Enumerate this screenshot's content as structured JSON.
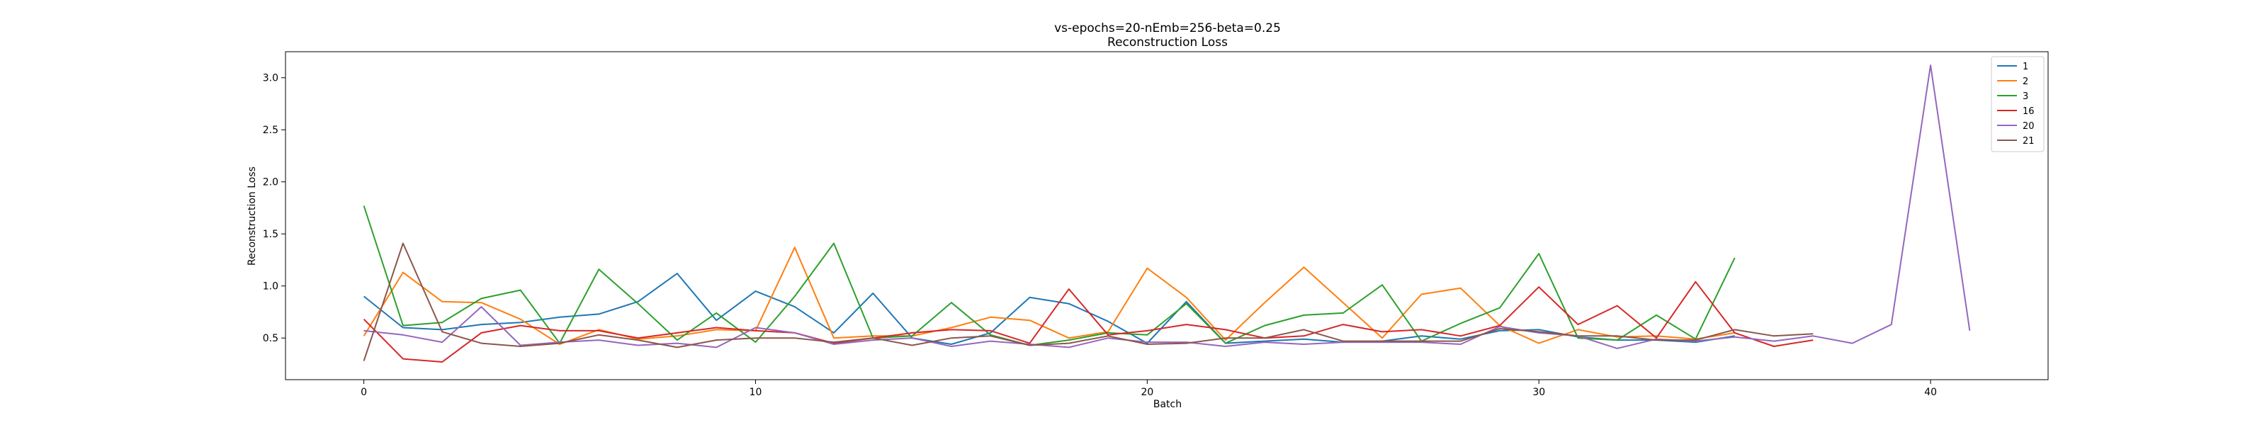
{
  "chart_data": {
    "type": "line",
    "title": "vs-epochs=20-nEmb=256-beta=0.25",
    "subtitle": "Reconstruction Loss",
    "xlabel": "Batch",
    "ylabel": "Reconstruction Loss",
    "xlim": [
      -2,
      43
    ],
    "ylim": [
      0.1,
      3.25
    ],
    "xticks": [
      0,
      10,
      20,
      30,
      40
    ],
    "yticks": [
      0.5,
      1.0,
      1.5,
      2.0,
      2.5,
      3.0
    ],
    "ytick_labels": [
      "0.5",
      "1.0",
      "1.5",
      "2.0",
      "2.5",
      "3.0"
    ],
    "grid": false,
    "legend": "top-right",
    "series": [
      {
        "name": "1",
        "color": "#1f77b4",
        "x": [
          0,
          1,
          2,
          3,
          4,
          5,
          6,
          7,
          8,
          9,
          10,
          11,
          12,
          13,
          14,
          15,
          16,
          17,
          18,
          19,
          20,
          21,
          22,
          23,
          24,
          25,
          26,
          27,
          28,
          29,
          30,
          31,
          32,
          33,
          34,
          35
        ],
        "values": [
          0.9,
          0.6,
          0.58,
          0.63,
          0.65,
          0.7,
          0.73,
          0.85,
          1.12,
          0.67,
          0.95,
          0.8,
          0.55,
          0.93,
          0.5,
          0.44,
          0.55,
          0.89,
          0.83,
          0.66,
          0.45,
          0.85,
          0.45,
          0.47,
          0.49,
          0.46,
          0.47,
          0.52,
          0.49,
          0.57,
          0.58,
          0.51,
          0.48,
          0.48,
          0.46,
          0.52
        ]
      },
      {
        "name": "2",
        "color": "#ff7f0e",
        "x": [
          0,
          1,
          2,
          3,
          4,
          5,
          6,
          7,
          8,
          9,
          10,
          11,
          12,
          13,
          14,
          15,
          16,
          17,
          18,
          19,
          20,
          21,
          22,
          23,
          24,
          25,
          26,
          27,
          28,
          29,
          30,
          31,
          32,
          33,
          34,
          35
        ],
        "values": [
          0.52,
          1.13,
          0.85,
          0.84,
          0.68,
          0.44,
          0.58,
          0.49,
          0.52,
          0.58,
          0.57,
          1.37,
          0.5,
          0.52,
          0.52,
          0.6,
          0.7,
          0.67,
          0.5,
          0.56,
          1.17,
          0.89,
          0.48,
          0.84,
          1.18,
          0.84,
          0.5,
          0.92,
          0.98,
          0.62,
          0.45,
          0.58,
          0.51,
          0.52,
          0.49,
          0.55
        ]
      },
      {
        "name": "3",
        "color": "#2ca02c",
        "x": [
          0,
          1,
          2,
          3,
          4,
          5,
          6,
          7,
          8,
          9,
          10,
          11,
          12,
          13,
          14,
          15,
          16,
          17,
          18,
          19,
          20,
          21,
          22,
          23,
          24,
          25,
          26,
          27,
          28,
          29,
          30,
          31,
          32,
          33,
          34,
          35
        ],
        "values": [
          1.77,
          0.62,
          0.65,
          0.88,
          0.96,
          0.45,
          1.16,
          0.83,
          0.48,
          0.74,
          0.46,
          0.9,
          1.41,
          0.5,
          0.52,
          0.84,
          0.53,
          0.43,
          0.48,
          0.55,
          0.53,
          0.83,
          0.45,
          0.62,
          0.72,
          0.74,
          1.01,
          0.47,
          0.64,
          0.79,
          1.31,
          0.5,
          0.48,
          0.72,
          0.49,
          1.27
        ]
      },
      {
        "name": "16",
        "color": "#d62728",
        "x": [
          0,
          1,
          2,
          3,
          4,
          5,
          6,
          7,
          8,
          9,
          10,
          11,
          12,
          13,
          14,
          15,
          16,
          17,
          18,
          19,
          20,
          21,
          22,
          23,
          24,
          25,
          26,
          27,
          28,
          29,
          30,
          31,
          32,
          33,
          34,
          35,
          36,
          37
        ],
        "values": [
          0.68,
          0.3,
          0.27,
          0.55,
          0.62,
          0.57,
          0.57,
          0.5,
          0.55,
          0.6,
          0.57,
          0.55,
          0.45,
          0.5,
          0.55,
          0.58,
          0.57,
          0.45,
          0.97,
          0.53,
          0.57,
          0.63,
          0.58,
          0.5,
          0.52,
          0.63,
          0.56,
          0.58,
          0.52,
          0.62,
          0.99,
          0.63,
          0.81,
          0.5,
          1.04,
          0.55,
          0.42,
          0.48
        ]
      },
      {
        "name": "20",
        "color": "#9467bd",
        "x": [
          0,
          1,
          2,
          3,
          4,
          5,
          6,
          7,
          8,
          9,
          10,
          11,
          12,
          13,
          14,
          15,
          16,
          17,
          18,
          19,
          20,
          21,
          22,
          23,
          24,
          25,
          26,
          27,
          28,
          29,
          30,
          31,
          32,
          33,
          34,
          35,
          36,
          37,
          38,
          39,
          40,
          41
        ],
        "values": [
          0.57,
          0.53,
          0.46,
          0.8,
          0.43,
          0.46,
          0.48,
          0.43,
          0.45,
          0.41,
          0.6,
          0.55,
          0.44,
          0.48,
          0.5,
          0.42,
          0.47,
          0.44,
          0.41,
          0.5,
          0.46,
          0.46,
          0.42,
          0.46,
          0.44,
          0.46,
          0.46,
          0.46,
          0.44,
          0.61,
          0.55,
          0.52,
          0.4,
          0.49,
          0.47,
          0.51,
          0.47,
          0.52,
          0.45,
          0.63,
          3.12,
          0.57
        ]
      },
      {
        "name": "21",
        "color": "#8c564b",
        "x": [
          0,
          1,
          2,
          3,
          4,
          5,
          6,
          7,
          8,
          9,
          10,
          11,
          12,
          13,
          14,
          15,
          16,
          17,
          18,
          19,
          20,
          21,
          22,
          23,
          24,
          25,
          26,
          27,
          28,
          29,
          30,
          31,
          32,
          33,
          34,
          35,
          36,
          37
        ],
        "values": [
          0.28,
          1.41,
          0.56,
          0.45,
          0.42,
          0.45,
          0.53,
          0.48,
          0.41,
          0.48,
          0.5,
          0.5,
          0.46,
          0.5,
          0.43,
          0.5,
          0.52,
          0.43,
          0.45,
          0.52,
          0.44,
          0.45,
          0.5,
          0.5,
          0.58,
          0.47,
          0.47,
          0.47,
          0.47,
          0.59,
          0.56,
          0.52,
          0.52,
          0.48,
          0.48,
          0.58,
          0.52,
          0.54
        ]
      }
    ]
  }
}
